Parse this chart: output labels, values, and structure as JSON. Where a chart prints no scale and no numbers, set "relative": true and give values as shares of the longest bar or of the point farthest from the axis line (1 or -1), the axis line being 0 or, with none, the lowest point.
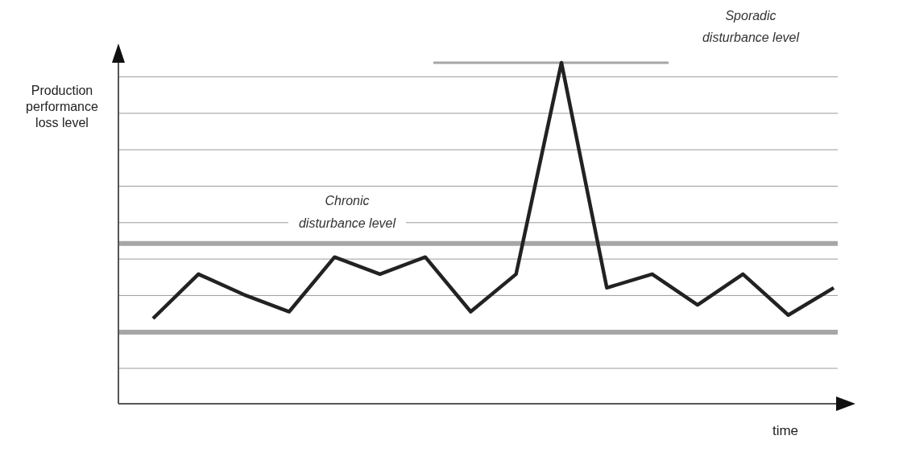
{
  "chart_data": {
    "type": "line",
    "relative": true,
    "xlabel": "time",
    "ylabel": "Production performance loss level",
    "categories": [
      null,
      null,
      null,
      null,
      null,
      null,
      null,
      null,
      null,
      null,
      null,
      null,
      null,
      null,
      null,
      null
    ],
    "series": [
      {
        "color": "#222222",
        "values": [
          0.25,
          0.38,
          0.32,
          0.27,
          0.43,
          0.38,
          0.43,
          0.27,
          0.38,
          1,
          0.34,
          0.38,
          0.29,
          0.38,
          0.26,
          0.34
        ]
      }
    ],
    "ref_lines": [
      {
        "axis": "y",
        "value": 0.47,
        "label": "Chronic disturbance level",
        "color": "#a6a6a6"
      },
      {
        "axis": "y",
        "value": 0.21,
        "color": "#a6a6a6"
      },
      {
        "axis": "y",
        "value": 1,
        "label": "Sporadic disturbance level",
        "color": "#a6a6a6"
      }
    ],
    "grid": "y",
    "marker": "none",
    "line_style": "solid"
  }
}
